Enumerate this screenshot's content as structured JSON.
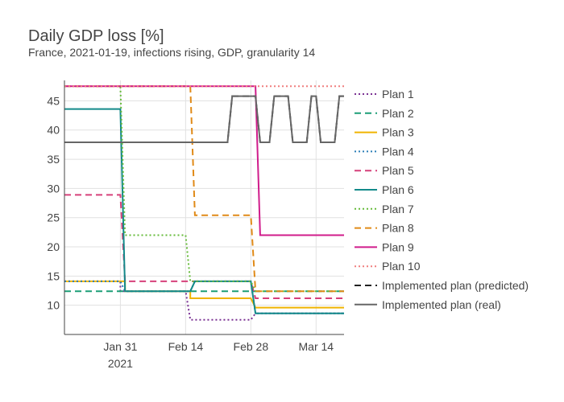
{
  "chart_data": {
    "type": "line",
    "title": "Daily GDP loss [%]",
    "subtitle": "France, 2021-01-19, infections rising, GDP, granularity 14",
    "x_ticks": [
      "Jan 31",
      "Feb 14",
      "Feb 28",
      "Mar 14"
    ],
    "x_tick_sublabel": "2021",
    "xlim": [
      "2021-01-19",
      "2021-03-20"
    ],
    "y_ticks": [
      10,
      15,
      20,
      25,
      30,
      35,
      40,
      45
    ],
    "ylim": [
      5,
      48.5
    ],
    "grid": true,
    "legend_position": "right",
    "series": [
      {
        "name": "Plan 1",
        "color": "#7b3294",
        "dash": "dot",
        "points": [
          [
            "2021-01-19",
            14.1
          ],
          [
            "2021-01-31",
            14.1
          ],
          [
            "2021-01-31",
            12.4
          ],
          [
            "2021-02-14",
            12.4
          ],
          [
            "2021-02-15",
            7.5
          ],
          [
            "2021-02-28",
            7.5
          ],
          [
            "2021-03-01",
            8.6
          ],
          [
            "2021-03-20",
            8.6
          ]
        ]
      },
      {
        "name": "Plan 2",
        "color": "#1b9e77",
        "dash": "dash",
        "points": [
          [
            "2021-01-19",
            12.4
          ],
          [
            "2021-03-20",
            12.4
          ]
        ]
      },
      {
        "name": "Plan 3",
        "color": "#f0b400",
        "dash": "solid",
        "points": [
          [
            "2021-01-19",
            14.1
          ],
          [
            "2021-02-01",
            14.1
          ],
          [
            "2021-02-01",
            12.4
          ],
          [
            "2021-02-15",
            12.4
          ],
          [
            "2021-02-15",
            11.2
          ],
          [
            "2021-02-28",
            11.2
          ],
          [
            "2021-03-01",
            9.6
          ],
          [
            "2021-03-20",
            9.6
          ]
        ]
      },
      {
        "name": "Plan 4",
        "color": "#2c7fb8",
        "dash": "dot",
        "points": [
          [
            "2021-01-19",
            14.1
          ],
          [
            "2021-01-31",
            14.1
          ],
          [
            "2021-02-01",
            12.4
          ],
          [
            "2021-02-15",
            12.4
          ],
          [
            "2021-02-16",
            14.1
          ],
          [
            "2021-02-28",
            14.1
          ],
          [
            "2021-03-01",
            8.6
          ],
          [
            "2021-03-20",
            8.6
          ]
        ]
      },
      {
        "name": "Plan 5",
        "color": "#d6407a",
        "dash": "dash",
        "points": [
          [
            "2021-01-19",
            28.9
          ],
          [
            "2021-01-31",
            28.9
          ],
          [
            "2021-02-01",
            14.1
          ],
          [
            "2021-02-28",
            14.1
          ],
          [
            "2021-03-01",
            11.2
          ],
          [
            "2021-03-20",
            11.2
          ]
        ]
      },
      {
        "name": "Plan 6",
        "color": "#138a8a",
        "dash": "solid",
        "points": [
          [
            "2021-01-19",
            43.6
          ],
          [
            "2021-01-31",
            43.6
          ],
          [
            "2021-02-01",
            12.4
          ],
          [
            "2021-02-15",
            12.4
          ],
          [
            "2021-02-16",
            14.1
          ],
          [
            "2021-02-28",
            14.1
          ],
          [
            "2021-03-01",
            8.6
          ],
          [
            "2021-03-20",
            8.6
          ]
        ]
      },
      {
        "name": "Plan 7",
        "color": "#66bb3a",
        "dash": "dot",
        "points": [
          [
            "2021-01-19",
            47.5
          ],
          [
            "2021-01-31",
            47.5
          ],
          [
            "2021-02-01",
            22.0
          ],
          [
            "2021-02-14",
            22.0
          ],
          [
            "2021-02-15",
            14.1
          ],
          [
            "2021-02-28",
            14.1
          ],
          [
            "2021-03-01",
            12.4
          ],
          [
            "2021-03-20",
            12.4
          ]
        ]
      },
      {
        "name": "Plan 8",
        "color": "#e08a18",
        "dash": "dash",
        "points": [
          [
            "2021-01-19",
            47.5
          ],
          [
            "2021-02-15",
            47.5
          ],
          [
            "2021-02-16",
            25.4
          ],
          [
            "2021-02-28",
            25.4
          ],
          [
            "2021-03-01",
            12.4
          ],
          [
            "2021-03-20",
            12.4
          ]
        ]
      },
      {
        "name": "Plan 9",
        "color": "#d01c8b",
        "dash": "solid",
        "points": [
          [
            "2021-01-19",
            47.5
          ],
          [
            "2021-03-01",
            47.5
          ],
          [
            "2021-03-02",
            22.0
          ],
          [
            "2021-03-20",
            22.0
          ]
        ]
      },
      {
        "name": "Plan 10",
        "color": "#f07e7e",
        "dash": "dot",
        "points": [
          [
            "2021-01-19",
            47.5
          ],
          [
            "2021-03-20",
            47.5
          ]
        ]
      },
      {
        "name": "Implemented plan (predicted)",
        "color": "#222222",
        "dash": "dash",
        "points": [
          [
            "2021-01-19",
            37.9
          ],
          [
            "2021-02-23",
            37.9
          ],
          [
            "2021-02-24",
            45.8
          ],
          [
            "2021-03-01",
            45.8
          ],
          [
            "2021-03-02",
            37.9
          ],
          [
            "2021-03-04",
            37.9
          ],
          [
            "2021-03-05",
            45.8
          ],
          [
            "2021-03-08",
            45.8
          ],
          [
            "2021-03-09",
            37.9
          ],
          [
            "2021-03-12",
            37.9
          ],
          [
            "2021-03-13",
            45.8
          ],
          [
            "2021-03-14",
            45.8
          ],
          [
            "2021-03-15",
            37.9
          ],
          [
            "2021-03-18",
            37.9
          ],
          [
            "2021-03-19",
            45.8
          ],
          [
            "2021-03-20",
            45.8
          ]
        ]
      },
      {
        "name": "Implemented plan (real)",
        "color": "#666666",
        "dash": "solid",
        "points": [
          [
            "2021-01-19",
            37.9
          ],
          [
            "2021-02-23",
            37.9
          ],
          [
            "2021-02-24",
            45.8
          ],
          [
            "2021-03-01",
            45.8
          ],
          [
            "2021-03-02",
            37.9
          ],
          [
            "2021-03-04",
            37.9
          ],
          [
            "2021-03-05",
            45.8
          ],
          [
            "2021-03-08",
            45.8
          ],
          [
            "2021-03-09",
            37.9
          ],
          [
            "2021-03-12",
            37.9
          ],
          [
            "2021-03-13",
            45.8
          ],
          [
            "2021-03-14",
            45.8
          ],
          [
            "2021-03-15",
            37.9
          ],
          [
            "2021-03-18",
            37.9
          ],
          [
            "2021-03-19",
            45.8
          ],
          [
            "2021-03-20",
            45.8
          ]
        ]
      }
    ]
  }
}
